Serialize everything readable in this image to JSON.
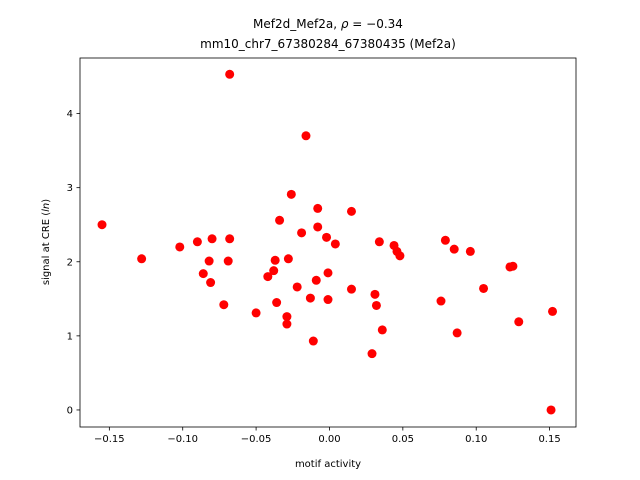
{
  "chart_data": {
    "type": "scatter",
    "title_line1_prefix": "Mef2d_Mef2a, ",
    "title_line1_rho": "ρ",
    "title_line1_suffix": " = −0.34",
    "title_line2": "mm10_chr7_67380284_67380435 (Mef2a)",
    "xlabel": "motif activity",
    "ylabel_prefix": "signal at CRE (",
    "ylabel_ital": "ln",
    "ylabel_suffix": ")",
    "xlim": [
      -0.17,
      0.168
    ],
    "ylim": [
      -0.23,
      4.75
    ],
    "xticks": [
      -0.15,
      -0.1,
      -0.05,
      0.0,
      0.05,
      0.1,
      0.15
    ],
    "xtick_labels": [
      "−0.15",
      "−0.10",
      "−0.05",
      "0.00",
      "0.05",
      "0.10",
      "0.15"
    ],
    "yticks": [
      0,
      1,
      2,
      3,
      4
    ],
    "ytick_labels": [
      "0",
      "1",
      "2",
      "3",
      "4"
    ],
    "marker_color": "#ff0000",
    "points": [
      {
        "x": -0.155,
        "y": 2.5
      },
      {
        "x": -0.128,
        "y": 2.04
      },
      {
        "x": -0.102,
        "y": 2.2
      },
      {
        "x": -0.09,
        "y": 2.27
      },
      {
        "x": -0.086,
        "y": 1.84
      },
      {
        "x": -0.082,
        "y": 2.01
      },
      {
        "x": -0.081,
        "y": 1.72
      },
      {
        "x": -0.08,
        "y": 2.31
      },
      {
        "x": -0.072,
        "y": 1.42
      },
      {
        "x": -0.069,
        "y": 2.01
      },
      {
        "x": -0.068,
        "y": 2.31
      },
      {
        "x": -0.068,
        "y": 4.53
      },
      {
        "x": -0.05,
        "y": 1.31
      },
      {
        "x": -0.042,
        "y": 1.8
      },
      {
        "x": -0.038,
        "y": 1.88
      },
      {
        "x": -0.037,
        "y": 2.02
      },
      {
        "x": -0.036,
        "y": 1.45
      },
      {
        "x": -0.034,
        "y": 2.56
      },
      {
        "x": -0.029,
        "y": 1.26
      },
      {
        "x": -0.029,
        "y": 1.16
      },
      {
        "x": -0.028,
        "y": 2.04
      },
      {
        "x": -0.026,
        "y": 2.91
      },
      {
        "x": -0.022,
        "y": 1.66
      },
      {
        "x": -0.019,
        "y": 2.39
      },
      {
        "x": -0.016,
        "y": 3.7
      },
      {
        "x": -0.013,
        "y": 1.51
      },
      {
        "x": -0.011,
        "y": 0.93
      },
      {
        "x": -0.009,
        "y": 1.75
      },
      {
        "x": -0.008,
        "y": 2.72
      },
      {
        "x": -0.008,
        "y": 2.47
      },
      {
        "x": -0.002,
        "y": 2.33
      },
      {
        "x": -0.001,
        "y": 1.85
      },
      {
        "x": -0.001,
        "y": 1.49
      },
      {
        "x": 0.004,
        "y": 2.24
      },
      {
        "x": 0.015,
        "y": 2.68
      },
      {
        "x": 0.015,
        "y": 1.63
      },
      {
        "x": 0.029,
        "y": 0.76
      },
      {
        "x": 0.031,
        "y": 1.56
      },
      {
        "x": 0.032,
        "y": 1.41
      },
      {
        "x": 0.034,
        "y": 2.27
      },
      {
        "x": 0.036,
        "y": 1.08
      },
      {
        "x": 0.044,
        "y": 2.22
      },
      {
        "x": 0.046,
        "y": 2.14
      },
      {
        "x": 0.048,
        "y": 2.08
      },
      {
        "x": 0.076,
        "y": 1.47
      },
      {
        "x": 0.079,
        "y": 2.29
      },
      {
        "x": 0.085,
        "y": 2.17
      },
      {
        "x": 0.087,
        "y": 1.04
      },
      {
        "x": 0.096,
        "y": 2.14
      },
      {
        "x": 0.105,
        "y": 1.64
      },
      {
        "x": 0.123,
        "y": 1.93
      },
      {
        "x": 0.125,
        "y": 1.94
      },
      {
        "x": 0.129,
        "y": 1.19
      },
      {
        "x": 0.151,
        "y": 0.0
      },
      {
        "x": 0.152,
        "y": 1.33
      }
    ]
  }
}
